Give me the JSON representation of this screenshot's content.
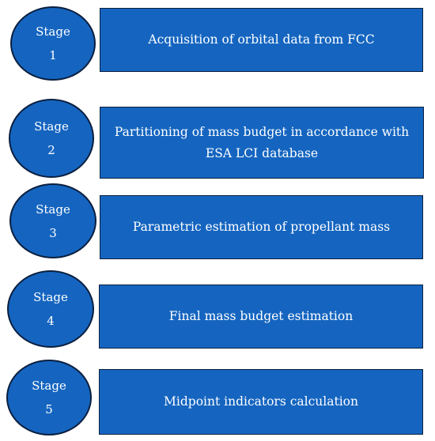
{
  "stages": [
    {
      "label": "Stage",
      "number": "1",
      "description_lines": [
        "Acquisition of orbital data from FCC"
      ]
    },
    {
      "label": "Stage",
      "number": "2",
      "description_lines": [
        "Partitioning of mass budget in accordance with",
        "ESA LCI database"
      ]
    },
    {
      "label": "Stage",
      "number": "3",
      "description_lines": [
        "Parametric estimation of propellant mass"
      ]
    },
    {
      "label": "Stage",
      "number": "4",
      "description_lines": [
        "Final mass budget estimation"
      ]
    },
    {
      "label": "Stage",
      "number": "5",
      "description_lines": [
        "Midpoint indicators calculation"
      ]
    }
  ],
  "colors": {
    "fill": "#1565C0",
    "outline": "#0A1F3F",
    "text": "#ffffff"
  }
}
